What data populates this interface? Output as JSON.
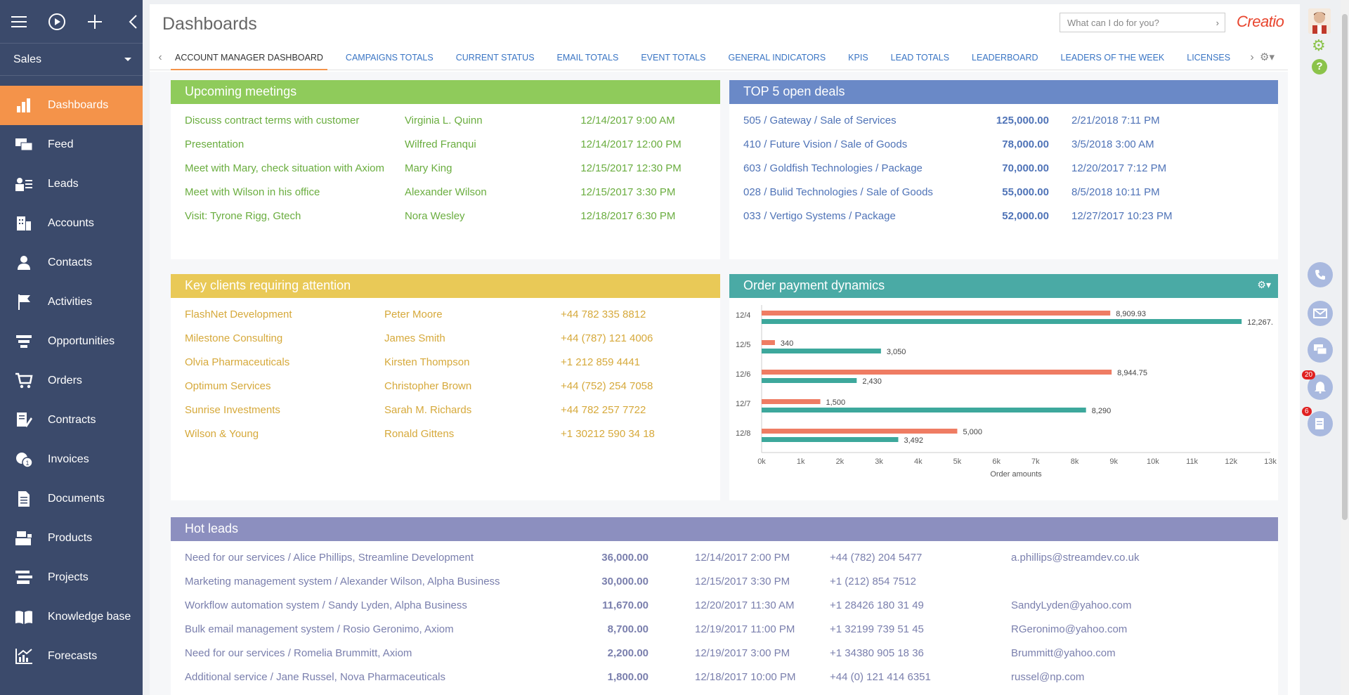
{
  "sidebar": {
    "section": "Sales",
    "items": [
      {
        "label": "Dashboards",
        "icon": "bar-chart-icon"
      },
      {
        "label": "Feed",
        "icon": "chat-icon"
      },
      {
        "label": "Leads",
        "icon": "leads-icon"
      },
      {
        "label": "Accounts",
        "icon": "building-icon"
      },
      {
        "label": "Contacts",
        "icon": "person-icon"
      },
      {
        "label": "Activities",
        "icon": "flag-icon"
      },
      {
        "label": "Opportunities",
        "icon": "funnel-icon"
      },
      {
        "label": "Orders",
        "icon": "cart-icon"
      },
      {
        "label": "Contracts",
        "icon": "contract-icon"
      },
      {
        "label": "Invoices",
        "icon": "invoice-icon"
      },
      {
        "label": "Documents",
        "icon": "document-icon"
      },
      {
        "label": "Products",
        "icon": "products-icon"
      },
      {
        "label": "Projects",
        "icon": "projects-icon"
      },
      {
        "label": "Knowledge base",
        "icon": "book-icon"
      },
      {
        "label": "Forecasts",
        "icon": "forecast-icon"
      }
    ]
  },
  "header": {
    "title": "Dashboards",
    "search_placeholder": "What can I do for you?",
    "logo": "Creatio"
  },
  "tabs": [
    "ACCOUNT MANAGER DASHBOARD",
    "CAMPAIGNS TOTALS",
    "CURRENT STATUS",
    "EMAIL TOTALS",
    "EVENT TOTALS",
    "GENERAL INDICATORS",
    "KPIS",
    "LEAD TOTALS",
    "LEADERBOARD",
    "LEADERS OF THE WEEK",
    "LICENSES"
  ],
  "meetings": {
    "title": "Upcoming meetings",
    "rows": [
      [
        "Discuss contract terms with customer",
        "Virginia L. Quinn",
        "12/14/2017 9:00 AM"
      ],
      [
        "Presentation",
        "Wilfred Franqui",
        "12/14/2017 12:00 PM"
      ],
      [
        "Meet with Mary, check situation with Axiom",
        "Mary King",
        "12/15/2017 12:30 PM"
      ],
      [
        "Meet with Wilson in his office",
        "Alexander Wilson",
        "12/15/2017 3:30 PM"
      ],
      [
        "Visit: Tyrone Rigg, Gtech",
        "Nora Wesley",
        "12/18/2017 6:30 PM"
      ]
    ]
  },
  "deals": {
    "title": "TOP 5 open deals",
    "rows": [
      [
        "505 / Gateway / Sale of Services",
        "125,000.00",
        "2/21/2018 7:11 PM"
      ],
      [
        "410 / Future Vision / Sale of Goods",
        "78,000.00",
        "3/5/2018 3:00 AM"
      ],
      [
        "603 / Goldfish Technologies / Package",
        "70,000.00",
        "12/20/2017 7:12 PM"
      ],
      [
        "028 / Bulid Technologies / Sale of Goods",
        "55,000.00",
        "8/5/2018 10:11 PM"
      ],
      [
        "033 / Vertigo Systems / Package",
        "52,000.00",
        "12/27/2017 10:23 PM"
      ]
    ]
  },
  "clients": {
    "title": "Key clients requiring attention",
    "rows": [
      [
        "FlashNet Development",
        "Peter Moore",
        "+44 782 335 8812"
      ],
      [
        "Milestone Consulting",
        "James Smith",
        "+44 (787) 121 4006"
      ],
      [
        "Olvia Pharmaceuticals",
        "Kirsten Thompson",
        "+1 212 859 4441"
      ],
      [
        "Optimum Services",
        "Christopher Brown",
        "+44 (752) 254 7058"
      ],
      [
        "Sunrise Investments",
        "Sarah M. Richards",
        "+44 782 257 7722"
      ],
      [
        "Wilson & Young",
        "Ronald Gittens",
        "+1 30212 590 34 18"
      ]
    ]
  },
  "chart_panel": {
    "title": "Order payment dynamics"
  },
  "chart_data": {
    "type": "bar",
    "orientation": "horizontal",
    "categories": [
      "12/4",
      "12/5",
      "12/6",
      "12/7",
      "12/8"
    ],
    "series": [
      {
        "values": [
          8909.93,
          340,
          8944.75,
          1500,
          5000
        ],
        "labels": [
          "8,909.93",
          "340",
          "8,944.75",
          "1,500",
          "5,000"
        ],
        "color": "#ef7c63"
      },
      {
        "values": [
          12267,
          3050,
          2430,
          8290,
          3492
        ],
        "labels": [
          "12,267.",
          "3,050",
          "2,430",
          "8,290",
          "3,492"
        ],
        "color": "#3da89c"
      }
    ],
    "xlabel": "Order amounts",
    "xticks": [
      "0k",
      "1k",
      "2k",
      "3k",
      "4k",
      "5k",
      "6k",
      "7k",
      "8k",
      "9k",
      "10k",
      "11k",
      "12k",
      "13k"
    ],
    "xlim": [
      0,
      13000
    ]
  },
  "leads": {
    "title": "Hot leads",
    "rows": [
      [
        "Need for our services / Alice Phillips, Streamline Development",
        "36,000.00",
        "12/14/2017 2:00 PM",
        "+44 (782) 204 5477",
        "a.phillips@streamdev.co.uk"
      ],
      [
        "Marketing management system / Alexander Wilson, Alpha Business",
        "30,000.00",
        "12/15/2017 3:30 PM",
        "+1 (212) 854 7512",
        ""
      ],
      [
        "Workflow automation system / Sandy Lyden, Alpha Business",
        "11,670.00",
        "12/20/2017 11:30 AM",
        "+1 28426 180 31 49",
        "SandyLyden@yahoo.com"
      ],
      [
        "Bulk email management system / Rosio Geronimo, Axiom",
        "8,700.00",
        "12/19/2017 11:00 PM",
        "+1 32199 739 51 45",
        "RGeronimo@yahoo.com"
      ],
      [
        "Need for our services / Romelia Brummitt, Axiom",
        "2,200.00",
        "12/19/2017 3:00 PM",
        "+1 34380 905 18 36",
        "Brummitt@yahoo.com"
      ],
      [
        "Additional service / Jane Russel, Nova Pharmaceuticals",
        "1,800.00",
        "12/18/2017 10:00 PM",
        "+44 (0) 121 414 6351",
        "russel@np.com"
      ]
    ]
  },
  "notifications": {
    "alerts_count": "20",
    "approvals_count": "6"
  }
}
